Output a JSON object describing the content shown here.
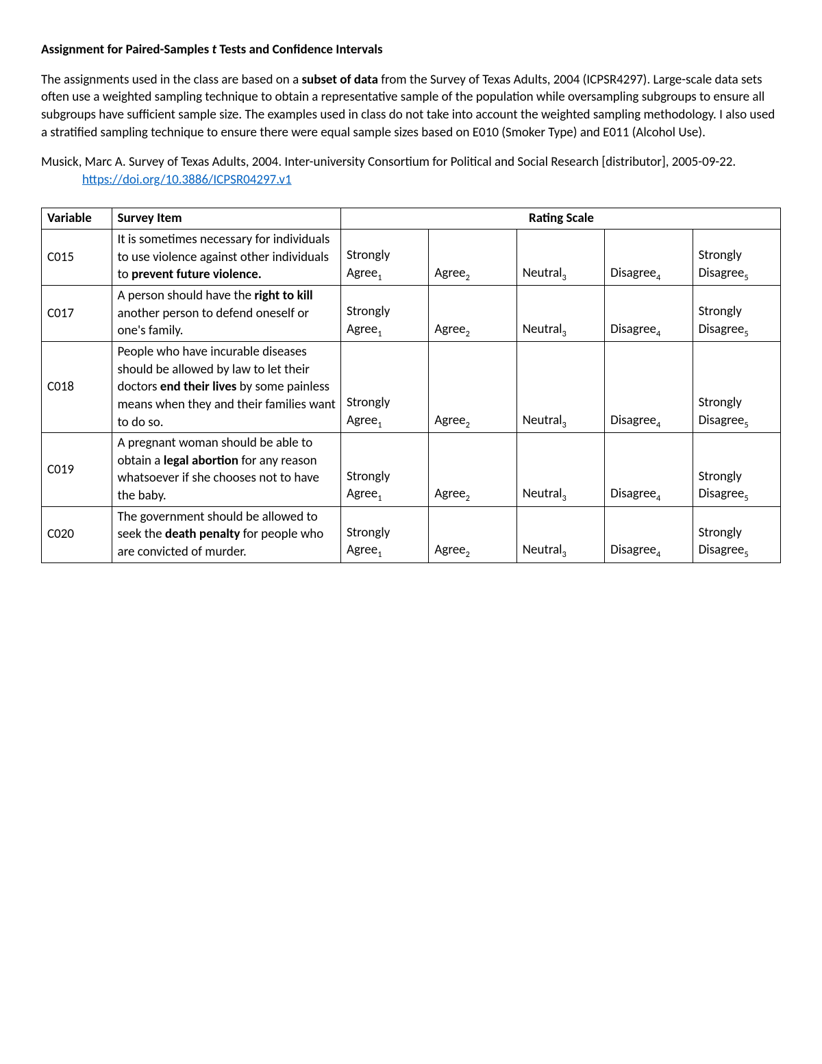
{
  "title_pre": "Assignment for Paired-Samples ",
  "title_ital": "t",
  "title_post": " Tests and Confidence Intervals",
  "intro_a": "The assignments used in the class are based on a ",
  "intro_b_bold": "subset of data",
  "intro_c": " from the Survey of Texas Adults, 2004 (ICPSR4297). Large-scale data sets often use a weighted sampling technique to obtain a representative sample of the population while oversampling subgroups to ensure all subgroups have sufficient sample size. The examples used in class do not take into account the weighted sampling methodology. I also used a stratified sampling technique to ensure there were equal sample sizes based on E010 (Smoker Type) and E011 (Alcohol Use).",
  "citation_pre": "Musick, Marc A. Survey of Texas Adults, 2004. Inter-university Consortium for Political and Social Research [distributor], 2005-09-22. ",
  "citation_link": "https://doi.org/10.3886/ICPSR04297.v1",
  "headers": {
    "variable": "Variable",
    "survey_item": "Survey Item",
    "rating_scale": "Rating Scale"
  },
  "scale": {
    "sa_a": "Strongly",
    "sa_b": "Agree",
    "sa_s": "1",
    "a": "Agree",
    "a_s": "2",
    "n": "Neutral",
    "n_s": "3",
    "d": "Disagree",
    "d_s": "4",
    "sd_a": "Strongly",
    "sd_b": "Disagree",
    "sd_s": "5"
  },
  "rows": [
    {
      "var": "C015",
      "t1": "It is sometimes necessary for individuals to use violence against other individuals to ",
      "tb": "prevent future violence.",
      "t2": ""
    },
    {
      "var": "C017",
      "t1": "A person should have the ",
      "tb": "right to kill",
      "t2": " another person to defend oneself or one's family."
    },
    {
      "var": "C018",
      "t1": "People who have incurable diseases should be allowed by law to let their doctors ",
      "tb": "end their lives",
      "t2": " by some painless means when they and their families want to do so."
    },
    {
      "var": "C019",
      "t1": "A pregnant woman should be able to obtain a ",
      "tb": "legal abortion",
      "t2": " for any reason whatsoever if she chooses not to have the baby."
    },
    {
      "var": "C020",
      "t1": "The government should be allowed to seek the ",
      "tb": "death penalty",
      "t2": " for people who are convicted of murder."
    }
  ]
}
